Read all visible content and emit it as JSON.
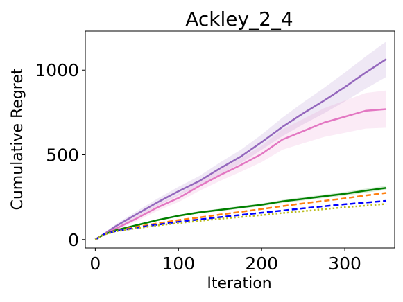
{
  "chart_data": {
    "type": "line",
    "title": "Ackley_2_4",
    "xlabel": "Iteration",
    "ylabel": "Cumulative Regret",
    "xlim": [
      -12,
      360
    ],
    "ylim": [
      -50,
      1230
    ],
    "xticks": [
      0,
      100,
      200,
      300
    ],
    "yticks": [
      0,
      500,
      1000
    ],
    "grid": false,
    "legend": false,
    "x": [
      0,
      10,
      25,
      50,
      75,
      100,
      125,
      150,
      175,
      200,
      225,
      250,
      275,
      300,
      325,
      350
    ],
    "series": [
      {
        "color": "#9467bd",
        "style": "solid",
        "values": [
          0,
          30,
          80,
          150,
          220,
          285,
          345,
          420,
          490,
          575,
          665,
          745,
          820,
          900,
          985,
          1065
        ],
        "band": [
          5,
          8,
          12,
          18,
          22,
          26,
          30,
          35,
          40,
          45,
          55,
          65,
          75,
          85,
          95,
          105
        ]
      },
      {
        "color": "#e377c2",
        "style": "solid",
        "values": [
          0,
          30,
          65,
          125,
          190,
          245,
          315,
          380,
          440,
          505,
          590,
          640,
          690,
          725,
          760,
          770
        ],
        "band": [
          5,
          8,
          12,
          16,
          20,
          24,
          28,
          34,
          40,
          48,
          60,
          72,
          85,
          95,
          105,
          110
        ]
      },
      {
        "color": "#008000",
        "style": "solid",
        "values": [
          0,
          30,
          55,
          85,
          115,
          140,
          160,
          175,
          190,
          205,
          225,
          240,
          255,
          270,
          288,
          305
        ],
        "band": [
          2,
          3,
          4,
          5,
          6,
          6,
          7,
          7,
          8,
          8,
          9,
          10,
          10,
          11,
          12,
          12
        ]
      },
      {
        "color": "#ff7f0e",
        "style": "dashed",
        "values": [
          0,
          30,
          52,
          75,
          95,
          115,
          130,
          147,
          163,
          180,
          197,
          213,
          228,
          243,
          260,
          275
        ]
      },
      {
        "color": "#0000ff",
        "style": "dashed",
        "values": [
          0,
          30,
          50,
          70,
          88,
          104,
          118,
          132,
          145,
          158,
          171,
          184,
          196,
          208,
          218,
          228
        ]
      },
      {
        "color": "#bcbd22",
        "style": "dotted",
        "values": [
          0,
          28,
          48,
          67,
          83,
          97,
          110,
          122,
          133,
          144,
          156,
          167,
          179,
          190,
          200,
          210
        ]
      }
    ]
  }
}
